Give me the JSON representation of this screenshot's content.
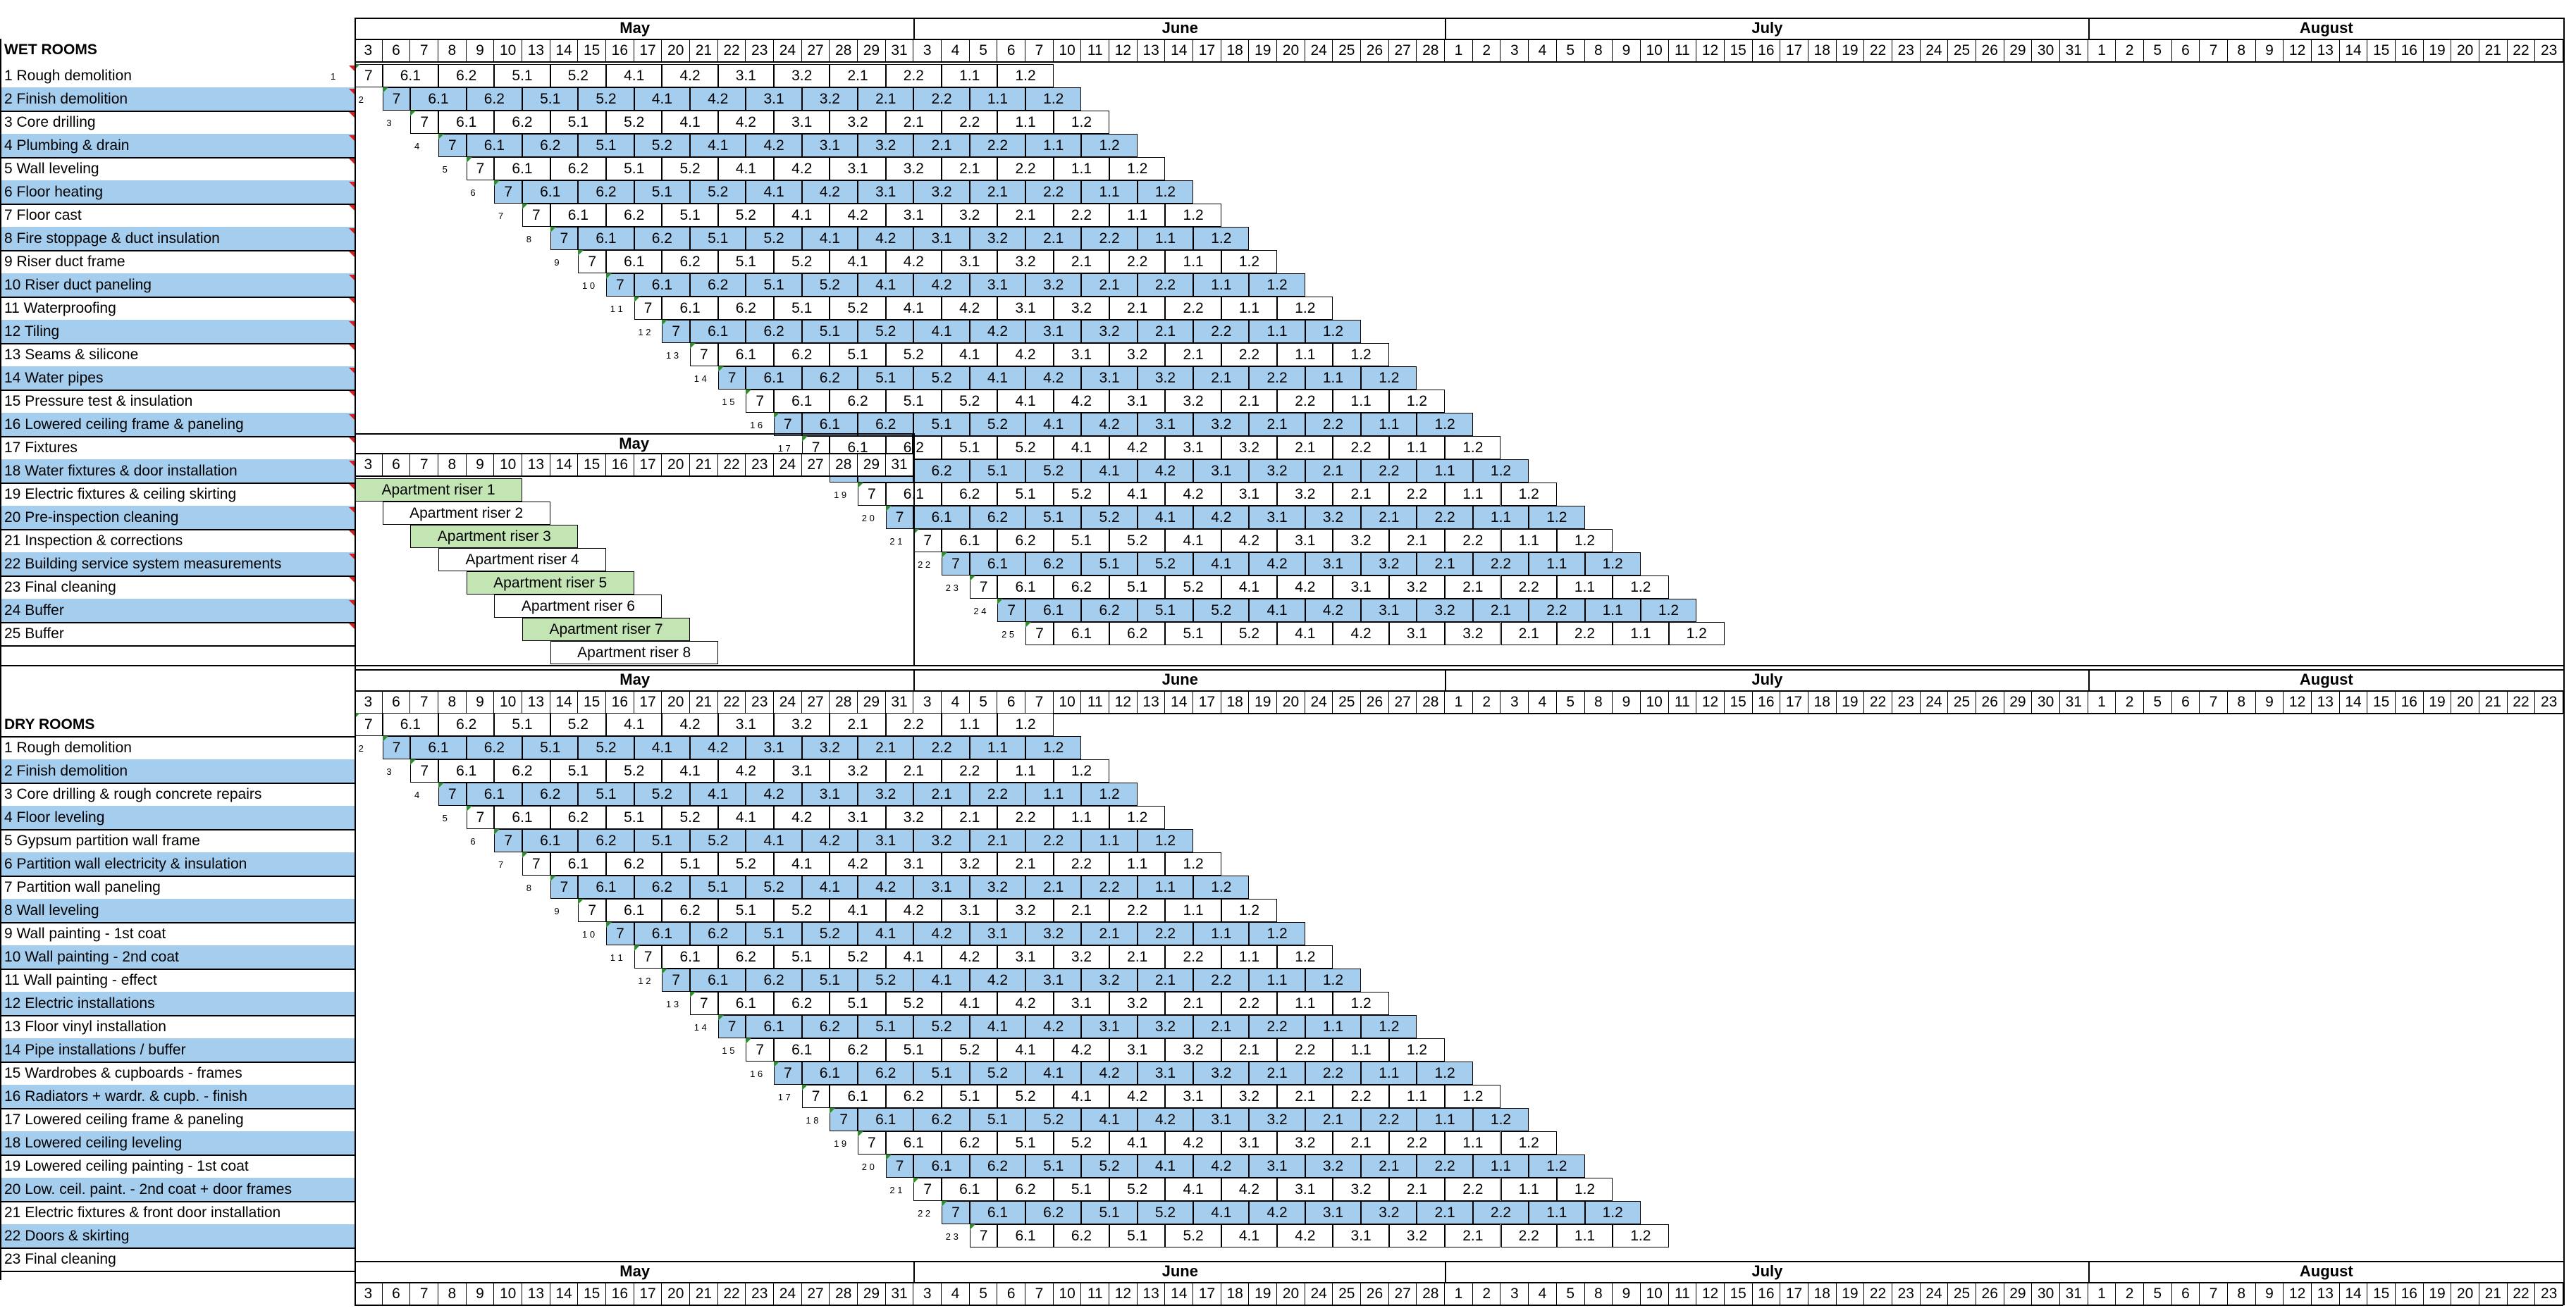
{
  "months": [
    {
      "name": "May",
      "days": [
        "3",
        "6",
        "7",
        "8",
        "9",
        "10",
        "13",
        "14",
        "15",
        "16",
        "17",
        "20",
        "21",
        "22",
        "23",
        "24",
        "27",
        "28",
        "29",
        "31"
      ]
    },
    {
      "name": "June",
      "days": [
        "3",
        "4",
        "5",
        "6",
        "7",
        "10",
        "11",
        "12",
        "13",
        "14",
        "17",
        "18",
        "19",
        "20",
        "24",
        "25",
        "26",
        "27",
        "28"
      ]
    },
    {
      "name": "July",
      "days": [
        "1",
        "2",
        "3",
        "4",
        "5",
        "8",
        "9",
        "10",
        "11",
        "12",
        "15",
        "16",
        "17",
        "18",
        "19",
        "22",
        "23",
        "24",
        "25",
        "26",
        "29",
        "30",
        "31"
      ]
    },
    {
      "name": "August",
      "days": [
        "1",
        "2",
        "5",
        "6",
        "7",
        "8",
        "9",
        "12",
        "13",
        "14",
        "15",
        "16",
        "19",
        "20",
        "21",
        "22",
        "23"
      ]
    }
  ],
  "sequence": [
    "7",
    "6.1",
    "6.2",
    "5.1",
    "5.2",
    "4.1",
    "4.2",
    "3.1",
    "3.2",
    "2.1",
    "2.2",
    "1.1",
    "1.2"
  ],
  "colors": {
    "blue": "#a5cdee",
    "green": "#c3e5b4",
    "start_flag": "#2e8b2e",
    "red_flag": "#e02020"
  },
  "wet": {
    "title": "WET ROOMS",
    "tasks": [
      "1 Rough demolition",
      "2 Finish demolition",
      "3 Core drilling",
      "4 Plumbing & drain",
      "5 Wall leveling",
      "6 Floor heating",
      "7 Floor cast",
      "8 Fire stoppage & duct insulation",
      "9 Riser duct frame",
      "10 Riser duct paneling",
      "11 Waterproofing",
      "12  Tiling",
      "13 Seams & silicone",
      "14 Water pipes",
      "15 Pressure test & insulation",
      "16 Lowered ceiling frame & paneling",
      "17 Fixtures",
      "18 Water fixtures & door installation",
      "19 Electric fixtures &  ceiling skirting",
      "20 Pre-inspection cleaning",
      "21 Inspection & corrections",
      "22 Building service system measurements",
      "23 Final cleaning",
      "24 Buffer",
      "25 Buffer"
    ],
    "starts": [
      "1",
      "2",
      "3",
      "4",
      "5",
      "6",
      "7",
      "8",
      "9",
      "1 0",
      "1 1",
      "1 2",
      "1 3",
      "1 4",
      "1 5",
      "1 6",
      "1 7",
      "1 8",
      "1 9",
      "2 0",
      "2 1",
      "2 2",
      "2 3",
      "2 4",
      "2 5"
    ]
  },
  "inset": {
    "month": "May",
    "days": [
      "3",
      "6",
      "7",
      "8",
      "9",
      "10",
      "13",
      "14",
      "15",
      "16",
      "17",
      "20",
      "21",
      "22",
      "23",
      "24",
      "27",
      "28",
      "29",
      "31"
    ],
    "risers": [
      "Apartment riser 1",
      "Apartment riser 2",
      "Apartment riser 3",
      "Apartment riser 4",
      "Apartment riser 5",
      "Apartment riser 6",
      "Apartment riser 7",
      "Apartment riser 8"
    ]
  },
  "dry": {
    "title": "DRY ROOMS",
    "tasks": [
      "1 Rough demolition",
      "2 Finish demolition",
      "3 Core drilling & rough concrete repairs",
      "4 Floor leveling",
      "5 Gypsum partition wall frame",
      "6 Partition wall electricity & insulation",
      "7 Partition wall paneling",
      "8 Wall leveling",
      "9 Wall painting - 1st coat",
      "10 Wall painting - 2nd coat",
      "11 Wall painting - effect",
      "12 Electric installations",
      "13 Floor vinyl installation",
      "14 Pipe installations / buffer",
      "15 Wardrobes & cupboards - frames",
      "16 Radiators + wardr. & cupb. - finish",
      "17 Lowered ceiling frame & paneling",
      "18 Lowered ceiling leveling",
      "19 Lowered ceiling painting - 1st coat",
      "20 Low. ceil. paint. - 2nd coat + door frames",
      "21 Electric fixtures & front door installation",
      "22 Doors & skirting",
      "23 Final cleaning"
    ],
    "starts": [
      "2",
      "3",
      "4",
      "5",
      "6",
      "7",
      "8",
      "9",
      "1 0",
      "1 1",
      "1 2",
      "1 3",
      "1 4",
      "1 5",
      "1 6",
      "1 7",
      "1 8",
      "1 9",
      "2 0",
      "2 1",
      "2 2",
      "2 3"
    ]
  }
}
